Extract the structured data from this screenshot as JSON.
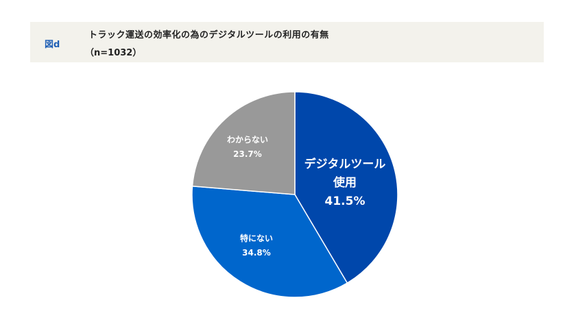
{
  "header": {
    "figure_label": "図d",
    "title": "トラック運送の効率化の為のデジタルツールの利用の有無",
    "subtitle": "（n=1032）"
  },
  "chart_data": {
    "type": "pie",
    "title": "トラック運送の効率化の為のデジタルツールの利用の有無",
    "subtitle": "（n=1032）",
    "n": 1032,
    "start_angle": "12 o'clock, clockwise",
    "slices": [
      {
        "label_line1": "デジタルツール",
        "label_line2": "使用",
        "value": 41.5,
        "value_label": "41.5%",
        "color": "#0047ab"
      },
      {
        "label_line1": "特にない",
        "value": 34.8,
        "value_label": "34.8%",
        "color": "#0066cc"
      },
      {
        "label_line1": "わからない",
        "value": 23.7,
        "value_label": "23.7%",
        "color": "#999999"
      }
    ],
    "legend": "none (labels inside slices)"
  }
}
